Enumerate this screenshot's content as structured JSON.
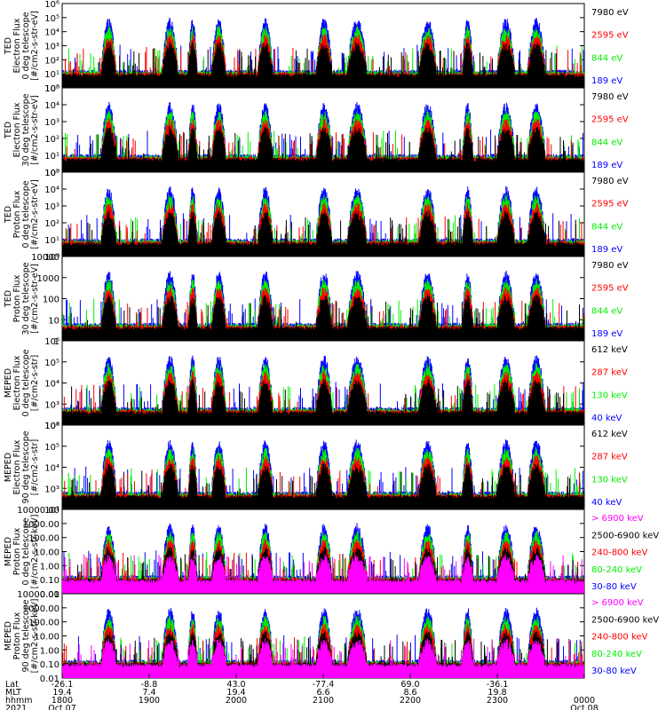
{
  "chart_data": {
    "type": "line",
    "title": "",
    "colors": {
      "blue": "#0000ff",
      "red": "#ff0000",
      "green": "#00ee00",
      "black": "#000000",
      "magenta": "#ff00ff"
    },
    "panels": [
      {
        "id": "ted-electron-0",
        "ylabel": [
          "TED",
          "Electron Flux",
          "0 deg telescope",
          "[#/cm2-s-str-eV]"
        ],
        "yscale": "log",
        "ylim": [
          1,
          1000000
        ],
        "yticks": [
          "10⁰",
          "10¹",
          "10²",
          "10³",
          "10⁴",
          "10⁵",
          "10⁶"
        ],
        "legend": [
          {
            "label": "7980 eV",
            "color": "#000000"
          },
          {
            "label": "2595 eV",
            "color": "#ff0000"
          },
          {
            "label": "844 eV",
            "color": "#00ee00"
          },
          {
            "label": "189 eV",
            "color": "#0000ff"
          }
        ]
      },
      {
        "id": "ted-electron-30",
        "ylabel": [
          "TED",
          "Electron Flux",
          "30 deg telescope",
          "[#/cm2-s-str-eV]"
        ],
        "yscale": "log",
        "ylim": [
          1,
          100000
        ],
        "yticks": [
          "10⁰",
          "10¹",
          "10²",
          "10³",
          "10⁴",
          "10⁵"
        ],
        "legend": [
          {
            "label": "7980 eV",
            "color": "#000000"
          },
          {
            "label": "2595 eV",
            "color": "#ff0000"
          },
          {
            "label": "844 eV",
            "color": "#00ee00"
          },
          {
            "label": "189 eV",
            "color": "#0000ff"
          }
        ]
      },
      {
        "id": "ted-proton-0",
        "ylabel": [
          "TED",
          "Proton Flux",
          "0 deg telescope",
          "[#/cm2-s-str-eV]"
        ],
        "yscale": "log",
        "ylim": [
          1,
          100000
        ],
        "yticks": [
          "10⁰",
          "10¹",
          "10²",
          "10³",
          "10⁴",
          "10⁵"
        ],
        "legend": [
          {
            "label": "7980 eV",
            "color": "#000000"
          },
          {
            "label": "2595 eV",
            "color": "#ff0000"
          },
          {
            "label": "844 eV",
            "color": "#00ee00"
          },
          {
            "label": "189 eV",
            "color": "#0000ff"
          }
        ]
      },
      {
        "id": "ted-proton-30",
        "ylabel": [
          "TED",
          "Proton Flux",
          "30 deg telescope",
          "[#/cm2-s-str-eV]"
        ],
        "yscale": "log",
        "ylim": [
          1,
          10000
        ],
        "yticks": [
          "1",
          "10",
          "100",
          "1000",
          "10000"
        ],
        "legend": [
          {
            "label": "7980 eV",
            "color": "#000000"
          },
          {
            "label": "2595 eV",
            "color": "#ff0000"
          },
          {
            "label": "844 eV",
            "color": "#00ee00"
          },
          {
            "label": "189 eV",
            "color": "#0000ff"
          }
        ]
      },
      {
        "id": "meped-electron-0",
        "ylabel": [
          "MEPED",
          "Electron Flux",
          "0 deg telescope",
          "[#/cm2-s-str]"
        ],
        "yscale": "log",
        "ylim": [
          100,
          1000000
        ],
        "yticks": [
          "10²",
          "10³",
          "10⁴",
          "10⁵",
          "10⁶"
        ],
        "legend": [
          {
            "label": "612 keV",
            "color": "#000000"
          },
          {
            "label": "287 keV",
            "color": "#ff0000"
          },
          {
            "label": "130 keV",
            "color": "#00ee00"
          },
          {
            "label": "40 keV",
            "color": "#0000ff"
          }
        ]
      },
      {
        "id": "meped-electron-90",
        "ylabel": [
          "MEPED",
          "Electron Flux",
          "90 deg telescope",
          "[#/cm2-s-str]"
        ],
        "yscale": "log",
        "ylim": [
          100,
          1000000
        ],
        "yticks": [
          "10²",
          "10³",
          "10⁴",
          "10⁵",
          "10⁶"
        ],
        "legend": [
          {
            "label": "612 keV",
            "color": "#000000"
          },
          {
            "label": "287 keV",
            "color": "#ff0000"
          },
          {
            "label": "130 keV",
            "color": "#00ee00"
          },
          {
            "label": "40 keV",
            "color": "#0000ff"
          }
        ]
      },
      {
        "id": "meped-proton-0",
        "ylabel": [
          "MEPED",
          "Proton Flux",
          "0 deg telescope",
          "[#/cm2-s-str-keV]"
        ],
        "yscale": "log",
        "ylim": [
          0.01,
          10000
        ],
        "yticks": [
          "0.01",
          "0.10",
          "1.00",
          "10.00",
          "100.00",
          "1000.00",
          "10000.00"
        ],
        "legend": [
          {
            "label": "> 6900 keV",
            "color": "#ff00ff"
          },
          {
            "label": "2500-6900 keV",
            "color": "#000000"
          },
          {
            "label": "240-800 keV",
            "color": "#ff0000"
          },
          {
            "label": "80-240 keV",
            "color": "#00ee00"
          },
          {
            "label": "30-80 keV",
            "color": "#0000ff"
          }
        ]
      },
      {
        "id": "meped-proton-90",
        "ylabel": [
          "MEPED",
          "Proton Flux",
          "90 deg telescope",
          "[#/cm2-s-str-keV]"
        ],
        "yscale": "log",
        "ylim": [
          0.01,
          10000
        ],
        "yticks": [
          "0.01",
          "0.10",
          "1.00",
          "10.00",
          "100.00",
          "1000.00",
          "10000.00"
        ],
        "legend": [
          {
            "label": "> 6900 keV",
            "color": "#ff00ff"
          },
          {
            "label": "2500-6900 keV",
            "color": "#000000"
          },
          {
            "label": "240-800 keV",
            "color": "#ff0000"
          },
          {
            "label": "80-240 keV",
            "color": "#00ee00"
          },
          {
            "label": "30-80 keV",
            "color": "#0000ff"
          }
        ]
      }
    ],
    "xaxis": {
      "row_labels": [
        "Lat",
        "MLT",
        "hhmm",
        "2021"
      ],
      "ticks": [
        {
          "time_hours": 18.0,
          "lat": "-26.1",
          "mlt": "19.4",
          "hhmm": "1800",
          "date": "Oct 07"
        },
        {
          "time_hours": 19.0,
          "lat": "-8.8",
          "mlt": "7.4",
          "hhmm": "1900",
          "date": ""
        },
        {
          "time_hours": 20.0,
          "lat": "43.0",
          "mlt": "19.4",
          "hhmm": "2000",
          "date": ""
        },
        {
          "time_hours": 21.0,
          "lat": "-77.4",
          "mlt": "6.6",
          "hhmm": "2100",
          "date": ""
        },
        {
          "time_hours": 22.0,
          "lat": "69.0",
          "mlt": "8.6",
          "hhmm": "2200",
          "date": ""
        },
        {
          "time_hours": 23.0,
          "lat": "-36.1",
          "mlt": "19.8",
          "hhmm": "2300",
          "date": ""
        },
        {
          "time_hours": 24.0,
          "lat": "",
          "mlt": "",
          "hhmm": "0000",
          "date": "Oct 08"
        }
      ],
      "xlim_hours": [
        18.0,
        24.0
      ]
    },
    "pass_windows_hours": [
      [
        18.45,
        18.62
      ],
      [
        19.15,
        19.33
      ],
      [
        19.45,
        19.55
      ],
      [
        19.72,
        19.88
      ],
      [
        20.25,
        20.42
      ],
      [
        20.92,
        21.1
      ],
      [
        21.28,
        21.5
      ],
      [
        22.1,
        22.3
      ],
      [
        22.6,
        22.72
      ],
      [
        23.0,
        23.2
      ],
      [
        23.35,
        23.55
      ]
    ]
  }
}
